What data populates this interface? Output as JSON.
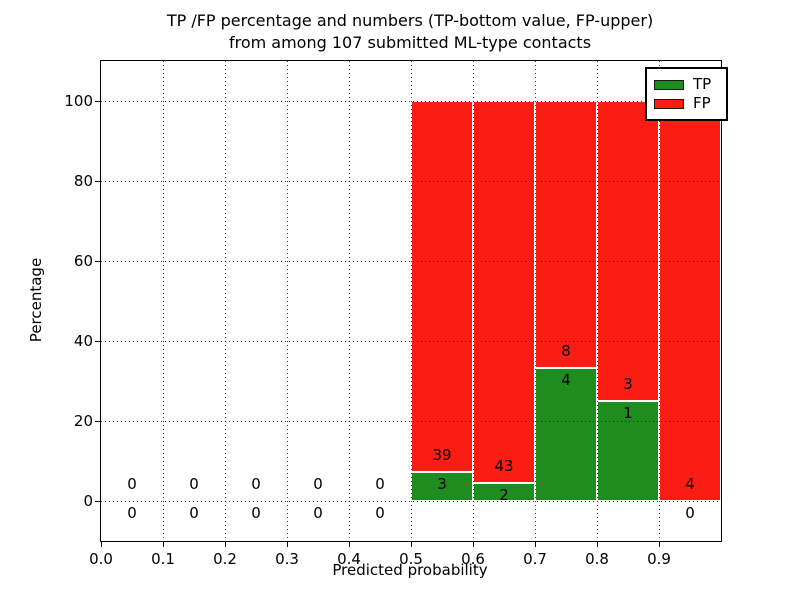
{
  "chart_data": {
    "type": "bar",
    "stacked": true,
    "title_line1": "TP /FP percentage and numbers (TP-bottom value, FP-upper)",
    "title_line2": "from among 107 submitted ML-type contacts",
    "xlabel": "Predicted probability",
    "ylabel": "Percentage",
    "xlim": [
      0.0,
      1.0
    ],
    "ylim": [
      -10,
      110
    ],
    "x_tick_labels": [
      "0.0",
      "0.1",
      "0.2",
      "0.3",
      "0.4",
      "0.5",
      "0.6",
      "0.7",
      "0.8",
      "0.9"
    ],
    "x_tick_values": [
      0.0,
      0.1,
      0.2,
      0.3,
      0.4,
      0.5,
      0.6,
      0.7,
      0.8,
      0.9
    ],
    "y_tick_values": [
      0,
      20,
      40,
      60,
      80,
      100
    ],
    "grid": {
      "on": true,
      "style": "dotted",
      "color": "#1a1a1a"
    },
    "colors": {
      "tp": "#1e8c1e",
      "fp": "#fb1c13",
      "bar_edge": "#ffffff"
    },
    "legend": {
      "position": "upper-right",
      "entries": [
        {
          "label": "TP",
          "color": "#1e8c1e"
        },
        {
          "label": "FP",
          "color": "#fb1c13"
        }
      ]
    },
    "bins": [
      {
        "range": "0.0-0.1",
        "x0": 0.0,
        "x1": 0.1,
        "tp_count": 0,
        "fp_count": 0,
        "tp_pct": 0,
        "fp_pct": 0
      },
      {
        "range": "0.1-0.2",
        "x0": 0.1,
        "x1": 0.2,
        "tp_count": 0,
        "fp_count": 0,
        "tp_pct": 0,
        "fp_pct": 0
      },
      {
        "range": "0.2-0.3",
        "x0": 0.2,
        "x1": 0.3,
        "tp_count": 0,
        "fp_count": 0,
        "tp_pct": 0,
        "fp_pct": 0
      },
      {
        "range": "0.3-0.4",
        "x0": 0.3,
        "x1": 0.4,
        "tp_count": 0,
        "fp_count": 0,
        "tp_pct": 0,
        "fp_pct": 0
      },
      {
        "range": "0.4-0.5",
        "x0": 0.4,
        "x1": 0.5,
        "tp_count": 0,
        "fp_count": 0,
        "tp_pct": 0,
        "fp_pct": 0
      },
      {
        "range": "0.5-0.6",
        "x0": 0.5,
        "x1": 0.6,
        "tp_count": 3,
        "fp_count": 39,
        "tp_pct": 7.14,
        "fp_pct": 92.86
      },
      {
        "range": "0.6-0.7",
        "x0": 0.6,
        "x1": 0.7,
        "tp_count": 2,
        "fp_count": 43,
        "tp_pct": 4.44,
        "fp_pct": 95.56
      },
      {
        "range": "0.7-0.8",
        "x0": 0.7,
        "x1": 0.8,
        "tp_count": 4,
        "fp_count": 8,
        "tp_pct": 33.33,
        "fp_pct": 66.67
      },
      {
        "range": "0.8-0.9",
        "x0": 0.8,
        "x1": 0.9,
        "tp_count": 1,
        "fp_count": 3,
        "tp_pct": 25.0,
        "fp_pct": 75.0
      },
      {
        "range": "0.9-1.0",
        "x0": 0.9,
        "x1": 1.0,
        "tp_count": 0,
        "fp_count": 4,
        "tp_pct": 0.0,
        "fp_pct": 100.0
      }
    ]
  }
}
